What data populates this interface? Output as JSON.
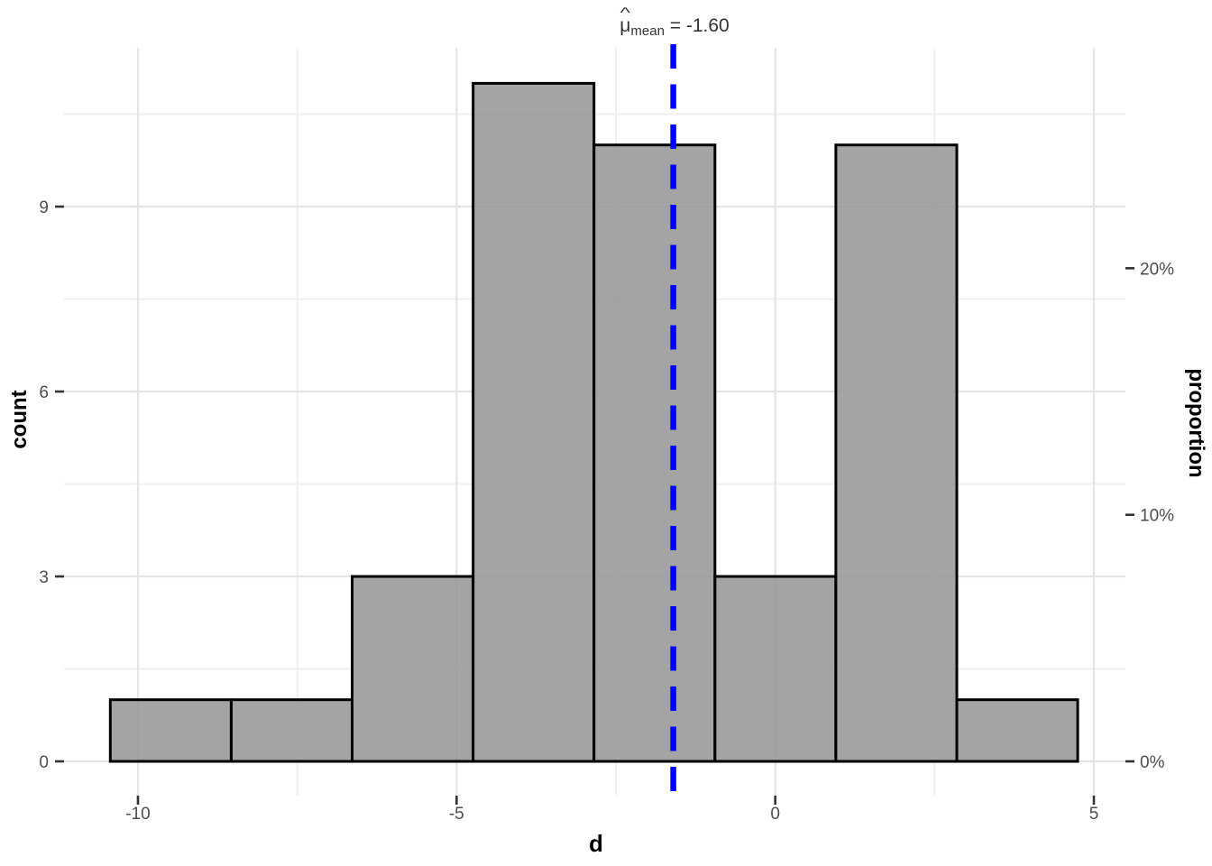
{
  "chart_data": {
    "type": "histogram",
    "x_axis": {
      "title": "d",
      "range": [
        -11.16,
        5.495
      ],
      "ticks": [
        {
          "value": -10,
          "label": "-10"
        },
        {
          "value": -5,
          "label": "-5"
        },
        {
          "value": 0,
          "label": "0"
        },
        {
          "value": 5,
          "label": "5"
        }
      ],
      "minor_gridlines": [
        -7.5,
        -2.5,
        2.5
      ]
    },
    "y_axis_left": {
      "title": "count",
      "range": [
        -0.556,
        11.576
      ],
      "ticks": [
        {
          "value": 0,
          "label": "0"
        },
        {
          "value": 3,
          "label": "3"
        },
        {
          "value": 6,
          "label": "6"
        },
        {
          "value": 9,
          "label": "9"
        }
      ],
      "minor_gridlines": [
        1.5,
        4.5,
        7.5,
        10.5
      ]
    },
    "y_axis_right": {
      "title": "proportion",
      "ticks": [
        {
          "count_value": 0,
          "label": "0%"
        },
        {
          "count_value": 4,
          "label": "10%"
        },
        {
          "count_value": 8,
          "label": "20%"
        }
      ]
    },
    "total_count": 40,
    "bins": [
      {
        "from": -10.434,
        "to": -8.536,
        "count": 1,
        "proportion_pct": 2.5
      },
      {
        "from": -8.536,
        "to": -6.639,
        "count": 1,
        "proportion_pct": 2.5
      },
      {
        "from": -6.639,
        "to": -4.741,
        "count": 3,
        "proportion_pct": 7.5
      },
      {
        "from": -4.741,
        "to": -2.844,
        "count": 11,
        "proportion_pct": 27.5
      },
      {
        "from": -2.844,
        "to": -0.946,
        "count": 10,
        "proportion_pct": 25.0
      },
      {
        "from": -0.946,
        "to": 0.951,
        "count": 3,
        "proportion_pct": 7.5
      },
      {
        "from": 0.951,
        "to": 2.849,
        "count": 10,
        "proportion_pct": 25.0
      },
      {
        "from": 2.849,
        "to": 4.746,
        "count": 1,
        "proportion_pct": 2.5
      }
    ],
    "mean_line": {
      "x": -1.6,
      "style": "dashed",
      "color": "#0000FA"
    },
    "annotation": {
      "mu": "μ",
      "hat": "^",
      "subscript": "mean",
      "rest": " = -1.60",
      "full_text": "μ̂mean = -1.60",
      "value": -1.6
    },
    "style": {
      "background": "#FFFFFF",
      "bar_fill": "rgba(150,150,150,0.87)",
      "bar_stroke": "#000000",
      "grid_major": "#E4E4E4",
      "grid_minor": "#EFEFEF",
      "tick": "#333333",
      "tick_label": "#4D4D4D",
      "axis_title": "#000000",
      "mean_line_blue": "#0000FA"
    }
  }
}
